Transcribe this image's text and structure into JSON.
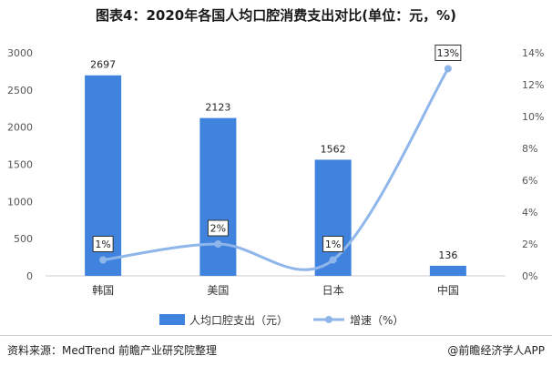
{
  "title": "图表4：2020年各国人均口腔消费支出对比(单位：元，%)",
  "source": "资料来源：MedTrend 前瞻产业研究院整理",
  "publisher": "@前瞻经济学人APP",
  "colors": {
    "bar": "#3f83de",
    "line": "#8fb6ea",
    "axis": "#cccccc"
  },
  "chart_data": {
    "type": "bar",
    "categories": [
      "韩国",
      "美国",
      "日本",
      "中国"
    ],
    "series": [
      {
        "name": "人均口腔支出（元）",
        "axis": "left",
        "type": "bar",
        "values": [
          2697,
          2123,
          1562,
          136
        ]
      },
      {
        "name": "增速（%）",
        "axis": "right",
        "type": "line",
        "values": [
          1,
          2,
          1,
          13
        ],
        "labels": [
          "1%",
          "2%",
          "1%",
          "13%"
        ]
      }
    ],
    "ylim_left": [
      0,
      3000
    ],
    "yticks_left": [
      "0",
      "500",
      "1000",
      "1500",
      "2000",
      "2500",
      "3000"
    ],
    "ylim_right": [
      0,
      14
    ],
    "yticks_right": [
      "0%",
      "2%",
      "4%",
      "6%",
      "8%",
      "10%",
      "12%",
      "14%"
    ],
    "grid": false,
    "legend_position": "bottom"
  }
}
